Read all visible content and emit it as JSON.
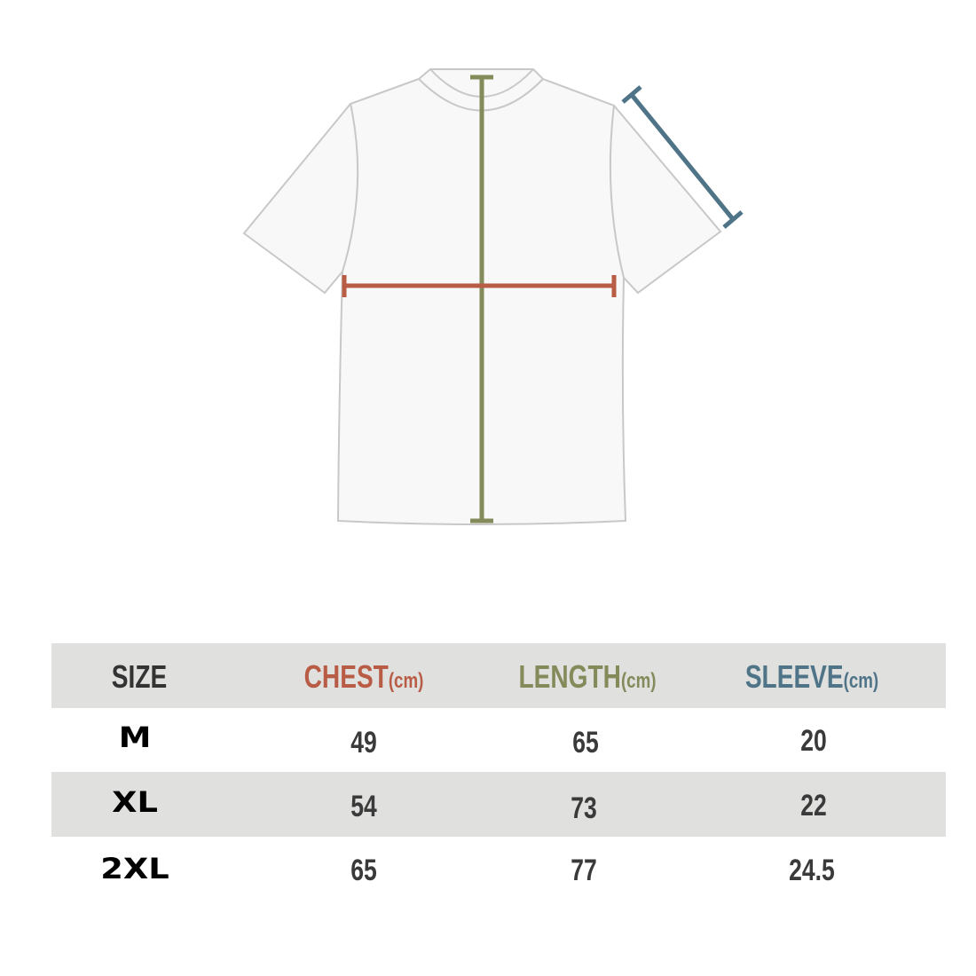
{
  "colors": {
    "chest": "#b95c45",
    "length": "#848a5a",
    "sleeve": "#4f7488",
    "size": "#333333",
    "band": "#e0e0df",
    "outline": "#c8c8c8"
  },
  "table": {
    "headers": [
      {
        "label": "SIZE",
        "unit": ""
      },
      {
        "label": "CHEST",
        "unit": "(cm)"
      },
      {
        "label": "LENGTH",
        "unit": "(cm)"
      },
      {
        "label": "SLEEVE",
        "unit": "(cm)"
      }
    ],
    "rows": [
      {
        "size": "M",
        "chest": "49",
        "length": "65",
        "sleeve": "20"
      },
      {
        "size": "XL",
        "chest": "54",
        "length": "73",
        "sleeve": "22"
      },
      {
        "size": "2XL",
        "chest": "65",
        "length": "77",
        "sleeve": "24.5"
      }
    ]
  }
}
